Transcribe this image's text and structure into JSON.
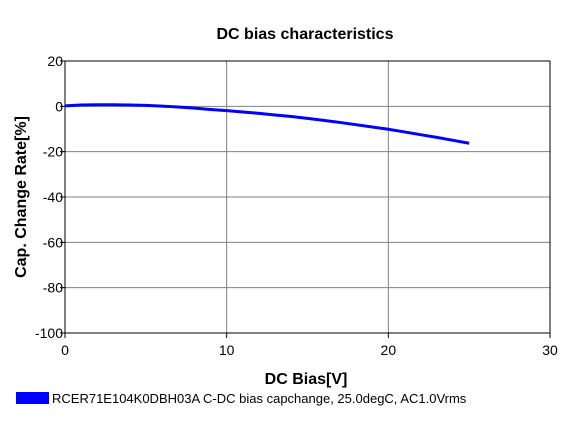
{
  "chart_data": {
    "type": "line",
    "title": "DC bias characteristics",
    "xlabel": "DC Bias[V]",
    "ylabel": "Cap. Change Rate[%]",
    "xlim": [
      0,
      30
    ],
    "ylim": [
      -100,
      20
    ],
    "xticks": [
      0,
      10,
      20,
      30
    ],
    "yticks": [
      -100,
      -80,
      -60,
      -40,
      -20,
      0,
      20
    ],
    "xtick_labels": [
      "0",
      "10",
      "20",
      "30"
    ],
    "ytick_labels": [
      "-100",
      "-80",
      "-60",
      "-40",
      "-20",
      "0",
      "20"
    ],
    "grid": true,
    "legend_position": "bottom-left",
    "series": [
      {
        "name": "RCER71E104K0DBH03A C-DC bias capchange, 25.0degC, AC1.0Vrms",
        "color": "#0000ff",
        "x": [
          0,
          1,
          2,
          3,
          4,
          5,
          6,
          7,
          8,
          9,
          10,
          11,
          12,
          13,
          14,
          15,
          16,
          17,
          18,
          19,
          20,
          21,
          22,
          23,
          24,
          25
        ],
        "y": [
          0.2,
          0.6,
          0.7,
          0.7,
          0.6,
          0.4,
          0.1,
          -0.3,
          -0.8,
          -1.4,
          -1.9,
          -2.5,
          -3.1,
          -3.8,
          -4.5,
          -5.3,
          -6.2,
          -7.1,
          -8.1,
          -9.1,
          -10.1,
          -11.3,
          -12.5,
          -13.7,
          -15.0,
          -16.3
        ]
      }
    ]
  }
}
